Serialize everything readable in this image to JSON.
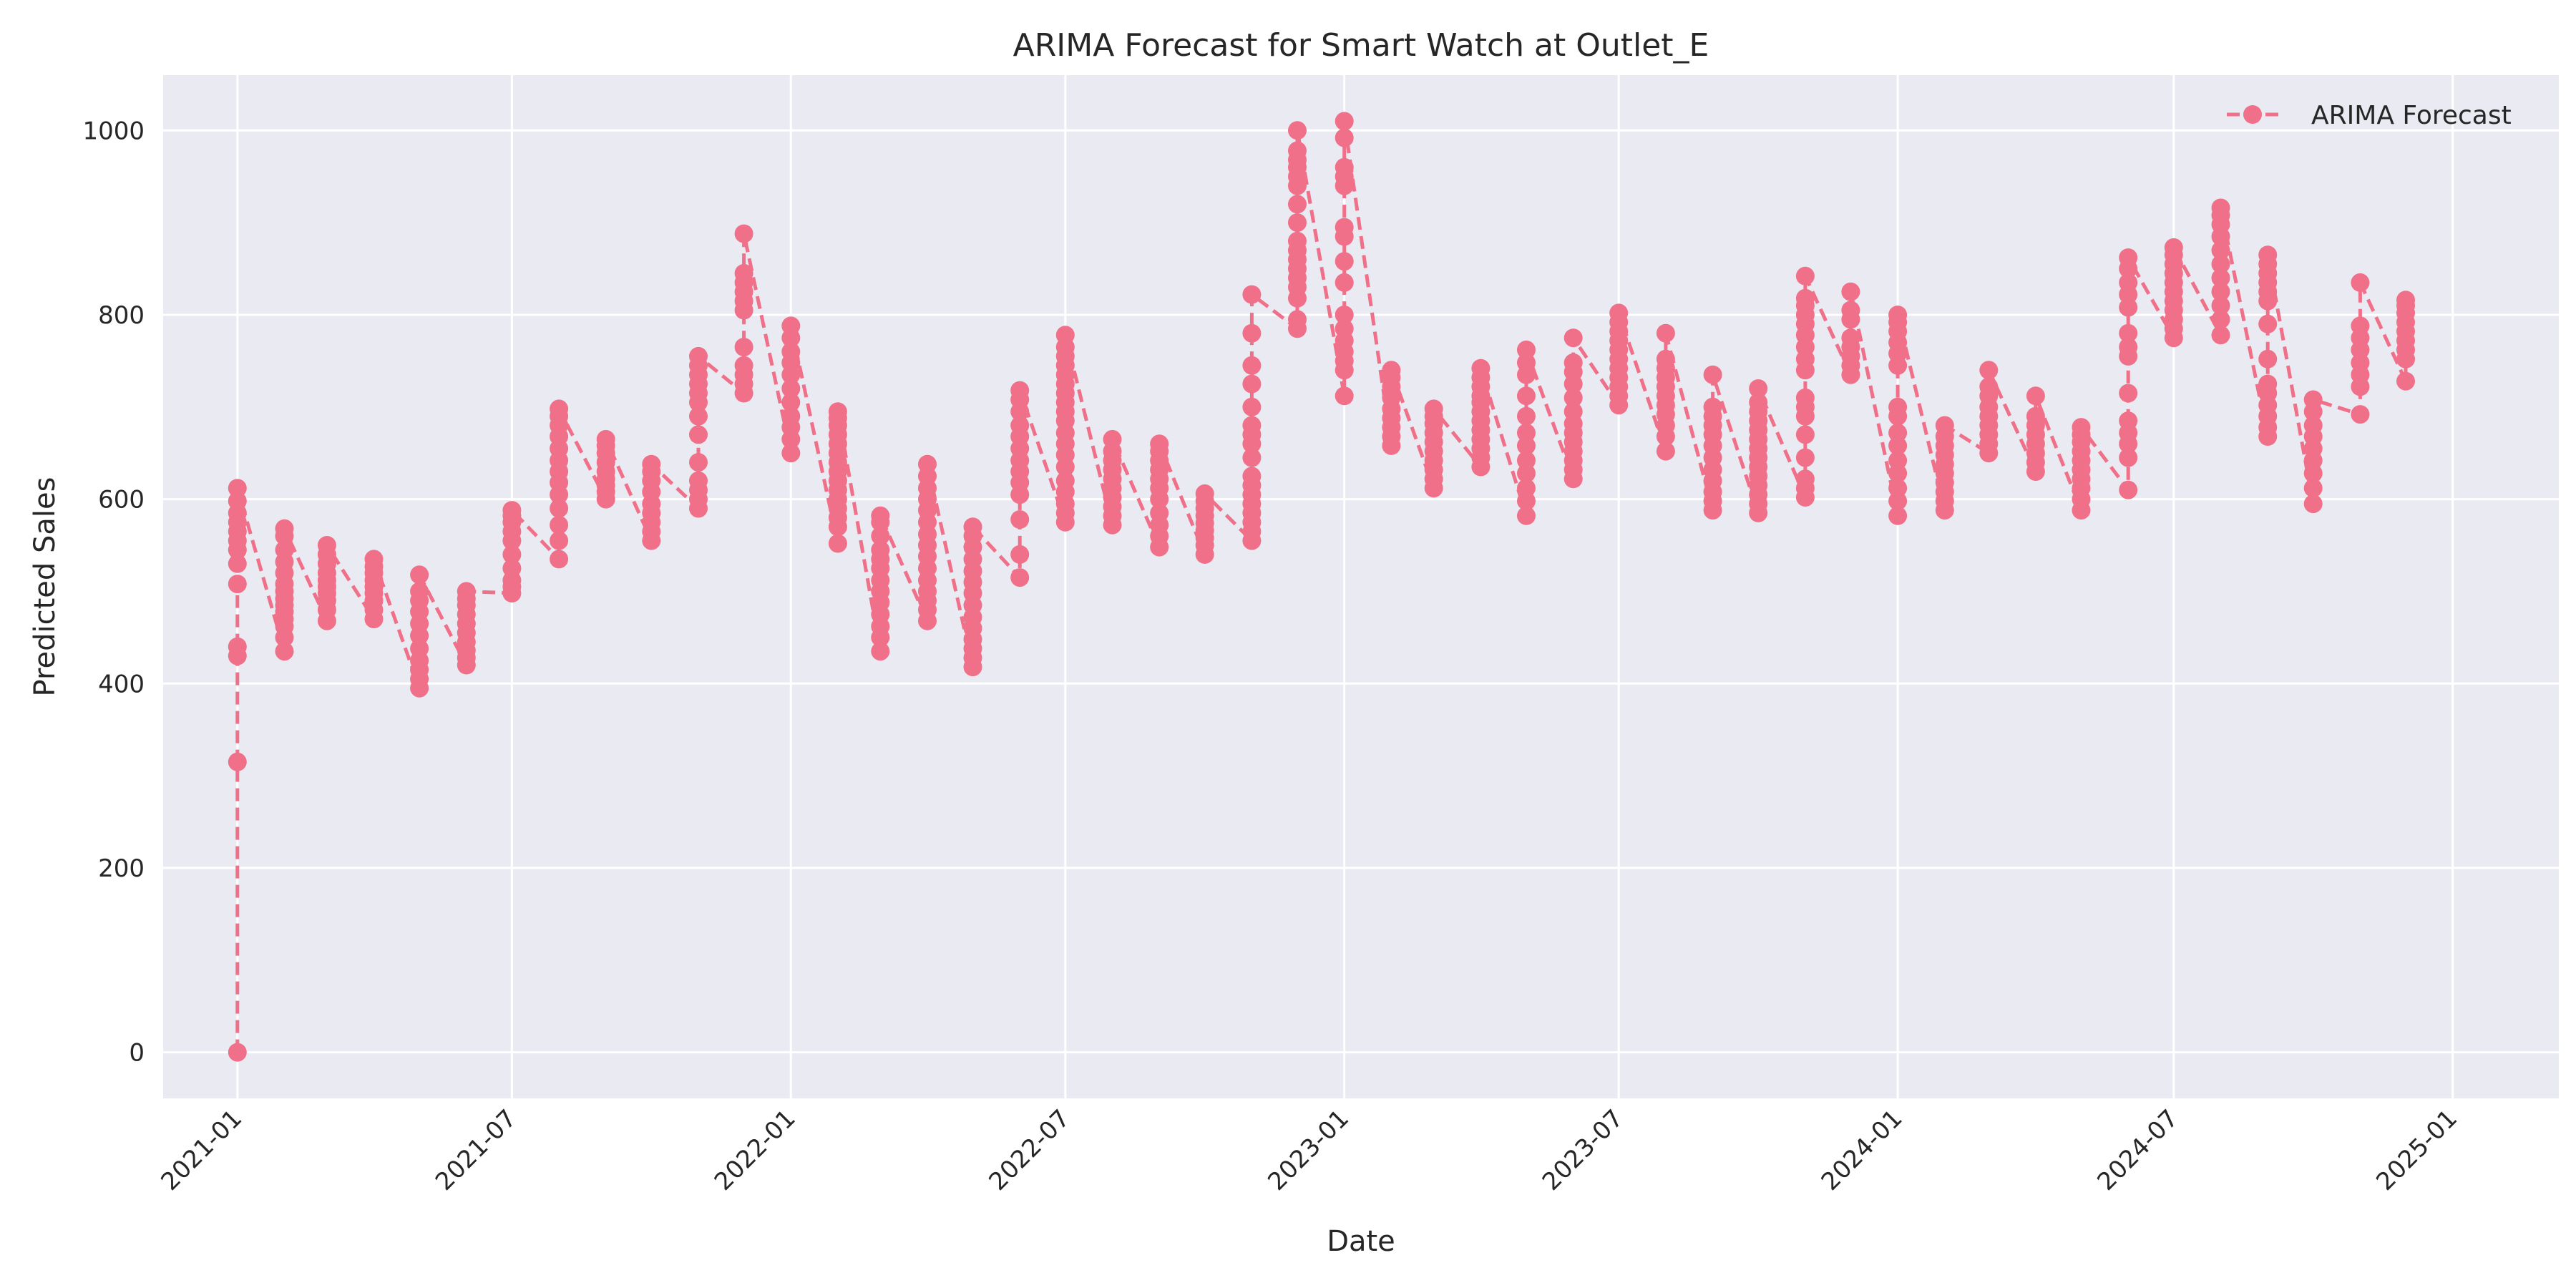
{
  "chart_data": {
    "type": "line",
    "title": "ARIMA Forecast for Smart Watch at Outlet_E",
    "xlabel": "Date",
    "ylabel": "Predicted Sales",
    "xlim": [
      "2020-11-13",
      "2025-03-12"
    ],
    "ylim": [
      -50,
      1060
    ],
    "x_ticks": [
      "2021-01",
      "2021-07",
      "2022-01",
      "2022-07",
      "2023-01",
      "2023-07",
      "2024-01",
      "2024-07",
      "2025-01"
    ],
    "y_ticks": [
      0,
      200,
      400,
      600,
      800,
      1000
    ],
    "grid": true,
    "legend": {
      "position": "top-right",
      "entries": [
        "ARIMA Forecast"
      ]
    },
    "colors": {
      "series": "#f07089",
      "plot_bg": "#eaeaf2",
      "grid": "#ffffff",
      "text": "#262626"
    },
    "series": [
      {
        "name": "ARIMA Forecast",
        "marker": "circle",
        "linestyle": "dashed",
        "points": [
          {
            "x": "2021-01-01",
            "values": [
              0,
              315,
              430,
              440,
              508,
              530,
              545,
              555,
              565,
              575,
              585,
              598,
              612
            ]
          },
          {
            "x": "2021-02-01",
            "values": [
              435,
              450,
              462,
              470,
              478,
              485,
              492,
              500,
              508,
              520,
              532,
              545,
              560,
              568
            ]
          },
          {
            "x": "2021-03-01",
            "values": [
              468,
              480,
              490,
              498,
              505,
              512,
              520,
              530,
              540,
              550
            ]
          },
          {
            "x": "2021-04-01",
            "values": [
              470,
              480,
              490,
              498,
              505,
              512,
              520,
              527,
              535
            ]
          },
          {
            "x": "2021-05-01",
            "values": [
              395,
              405,
              415,
              425,
              438,
              452,
              465,
              478,
              490,
              500,
              518
            ]
          },
          {
            "x": "2021-06-01",
            "values": [
              420,
              428,
              436,
              445,
              455,
              465,
              475,
              485,
              492,
              500
            ]
          },
          {
            "x": "2021-07-01",
            "values": [
              498,
              505,
              512,
              525,
              540,
              555,
              565,
              575,
              582,
              588
            ]
          },
          {
            "x": "2021-08-01",
            "values": [
              535,
              555,
              572,
              590,
              605,
              618,
              630,
              642,
              655,
              668,
              680,
              690,
              698
            ]
          },
          {
            "x": "2021-09-01",
            "values": [
              600,
              608,
              615,
              622,
              630,
              640,
              650,
              658,
              665
            ]
          },
          {
            "x": "2021-10-01",
            "values": [
              555,
              565,
              575,
              585,
              595,
              608,
              620,
              630,
              638
            ]
          },
          {
            "x": "2021-11-01",
            "values": [
              590,
              600,
              610,
              620,
              640,
              670,
              690,
              705,
              715,
              725,
              735,
              745,
              755
            ]
          },
          {
            "x": "2021-12-01",
            "values": [
              715,
              725,
              735,
              745,
              765,
              805,
              815,
              825,
              835,
              845,
              888
            ]
          },
          {
            "x": "2022-01-01",
            "values": [
              650,
              665,
              678,
              690,
              705,
              720,
              735,
              748,
              760,
              775,
              788
            ]
          },
          {
            "x": "2022-02-01",
            "values": [
              552,
              570,
              580,
              590,
              600,
              610,
              620,
              630,
              640,
              650,
              660,
              670,
              680,
              688,
              695
            ]
          },
          {
            "x": "2022-03-01",
            "values": [
              435,
              450,
              462,
              475,
              488,
              500,
              512,
              525,
              535,
              545,
              560,
              575,
              582
            ]
          },
          {
            "x": "2022-04-01",
            "values": [
              468,
              480,
              490,
              500,
              512,
              525,
              538,
              550,
              562,
              575,
              588,
              600,
              612,
              625,
              638
            ]
          },
          {
            "x": "2022-05-01",
            "values": [
              418,
              428,
              438,
              448,
              460,
              472,
              485,
              498,
              510,
              522,
              535,
              548,
              560,
              570
            ]
          },
          {
            "x": "2022-06-01",
            "values": [
              515,
              540,
              578,
              605,
              618,
              630,
              642,
              655,
              668,
              680,
              695,
              708,
              718
            ]
          },
          {
            "x": "2022-07-01",
            "values": [
              575,
              585,
              595,
              608,
              620,
              635,
              648,
              660,
              672,
              685,
              695,
              705,
              715,
              725,
              735,
              745,
              755,
              765,
              778
            ]
          },
          {
            "x": "2022-08-01",
            "values": [
              572,
              582,
              592,
              602,
              612,
              622,
              632,
              642,
              652,
              665
            ]
          },
          {
            "x": "2022-09-01",
            "values": [
              548,
              560,
              572,
              585,
              600,
              612,
              622,
              632,
              642,
              652,
              660
            ]
          },
          {
            "x": "2022-10-01",
            "values": [
              540,
              550,
              558,
              566,
              574,
              582,
              590,
              598,
              606
            ]
          },
          {
            "x": "2022-11-01",
            "values": [
              555,
              565,
              575,
              585,
              595,
              605,
              615,
              625,
              645,
              660,
              670,
              680,
              700,
              725,
              745,
              780,
              822
            ]
          },
          {
            "x": "2022-12-01",
            "values": [
              785,
              795,
              818,
              830,
              840,
              850,
              860,
              870,
              880,
              900,
              920,
              940,
              950,
              960,
              968,
              978,
              1000
            ]
          },
          {
            "x": "2023-01-01",
            "values": [
              712,
              740,
              750,
              760,
              772,
              785,
              800,
              835,
              858,
              885,
              895,
              940,
              950,
              960,
              992,
              1010
            ]
          },
          {
            "x": "2023-02-01",
            "values": [
              658,
              668,
              678,
              688,
              698,
              710,
              722,
              732,
              740
            ]
          },
          {
            "x": "2023-03-01",
            "values": [
              612,
              622,
              632,
              642,
              652,
              662,
              672,
              682,
              690,
              698
            ]
          },
          {
            "x": "2023-04-01",
            "values": [
              635,
              645,
              655,
              665,
              675,
              685,
              695,
              705,
              712,
              722,
              732,
              742
            ]
          },
          {
            "x": "2023-05-01",
            "values": [
              582,
              598,
              612,
              628,
              642,
              658,
              672,
              690,
              712,
              735,
              748,
              762
            ]
          },
          {
            "x": "2023-06-01",
            "values": [
              622,
              632,
              642,
              652,
              662,
              672,
              682,
              695,
              710,
              725,
              738,
              748,
              775
            ]
          },
          {
            "x": "2023-07-01",
            "values": [
              702,
              712,
              722,
              732,
              742,
              752,
              762,
              772,
              782,
              792,
              802
            ]
          },
          {
            "x": "2023-08-01",
            "values": [
              652,
              668,
              680,
              692,
              702,
              712,
              722,
              732,
              742,
              752,
              780
            ]
          },
          {
            "x": "2023-09-01",
            "values": [
              588,
              598,
              608,
              620,
              632,
              645,
              658,
              670,
              680,
              690,
              700,
              735
            ]
          },
          {
            "x": "2023-10-01",
            "values": [
              585,
              595,
              605,
              615,
              625,
              635,
              645,
              655,
              665,
              675,
              685,
              695,
              705,
              720
            ]
          },
          {
            "x": "2023-11-01",
            "values": [
              602,
              612,
              622,
              645,
              670,
              690,
              700,
              710,
              740,
              752,
              765,
              778,
              790,
              800,
              810,
              818,
              842
            ]
          },
          {
            "x": "2023-12-01",
            "values": [
              735,
              745,
              755,
              765,
              775,
              795,
              805,
              825
            ]
          },
          {
            "x": "2024-01-01",
            "values": [
              582,
              598,
              612,
              628,
              642,
              658,
              672,
              690,
              700,
              745,
              758,
              770,
              782,
              792,
              800
            ]
          },
          {
            "x": "2024-02-01",
            "values": [
              588,
              598,
              608,
              618,
              628,
              638,
              648,
              658,
              668,
              680
            ]
          },
          {
            "x": "2024-03-01",
            "values": [
              650,
              660,
              670,
              680,
              690,
              700,
              712,
              722,
              740
            ]
          },
          {
            "x": "2024-04-01",
            "values": [
              630,
              640,
              650,
              660,
              670,
              680,
              690,
              712
            ]
          },
          {
            "x": "2024-05-01",
            "values": [
              588,
              600,
              612,
              622,
              632,
              642,
              652,
              662,
              670,
              678
            ]
          },
          {
            "x": "2024-06-01",
            "values": [
              610,
              645,
              660,
              672,
              685,
              715,
              755,
              765,
              780,
              808,
              822,
              835,
              850,
              862
            ]
          },
          {
            "x": "2024-07-01",
            "values": [
              775,
              785,
              795,
              805,
              815,
              825,
              835,
              845,
              855,
              865,
              873
            ]
          },
          {
            "x": "2024-08-01",
            "values": [
              778,
              795,
              810,
              825,
              840,
              855,
              870,
              885,
              898,
              908,
              916
            ]
          },
          {
            "x": "2024-09-01",
            "values": [
              668,
              678,
              690,
              702,
              715,
              725,
              752,
              790,
              815,
              825,
              835,
              845,
              855,
              865
            ]
          },
          {
            "x": "2024-10-01",
            "values": [
              595,
              612,
              628,
              642,
              655,
              668,
              680,
              695,
              708
            ]
          },
          {
            "x": "2024-11-01",
            "values": [
              692,
              722,
              735,
              748,
              762,
              775,
              788,
              835
            ]
          },
          {
            "x": "2024-12-01",
            "values": [
              728,
              752,
              762,
              772,
              782,
              792,
              802,
              810,
              816
            ]
          }
        ]
      }
    ]
  }
}
